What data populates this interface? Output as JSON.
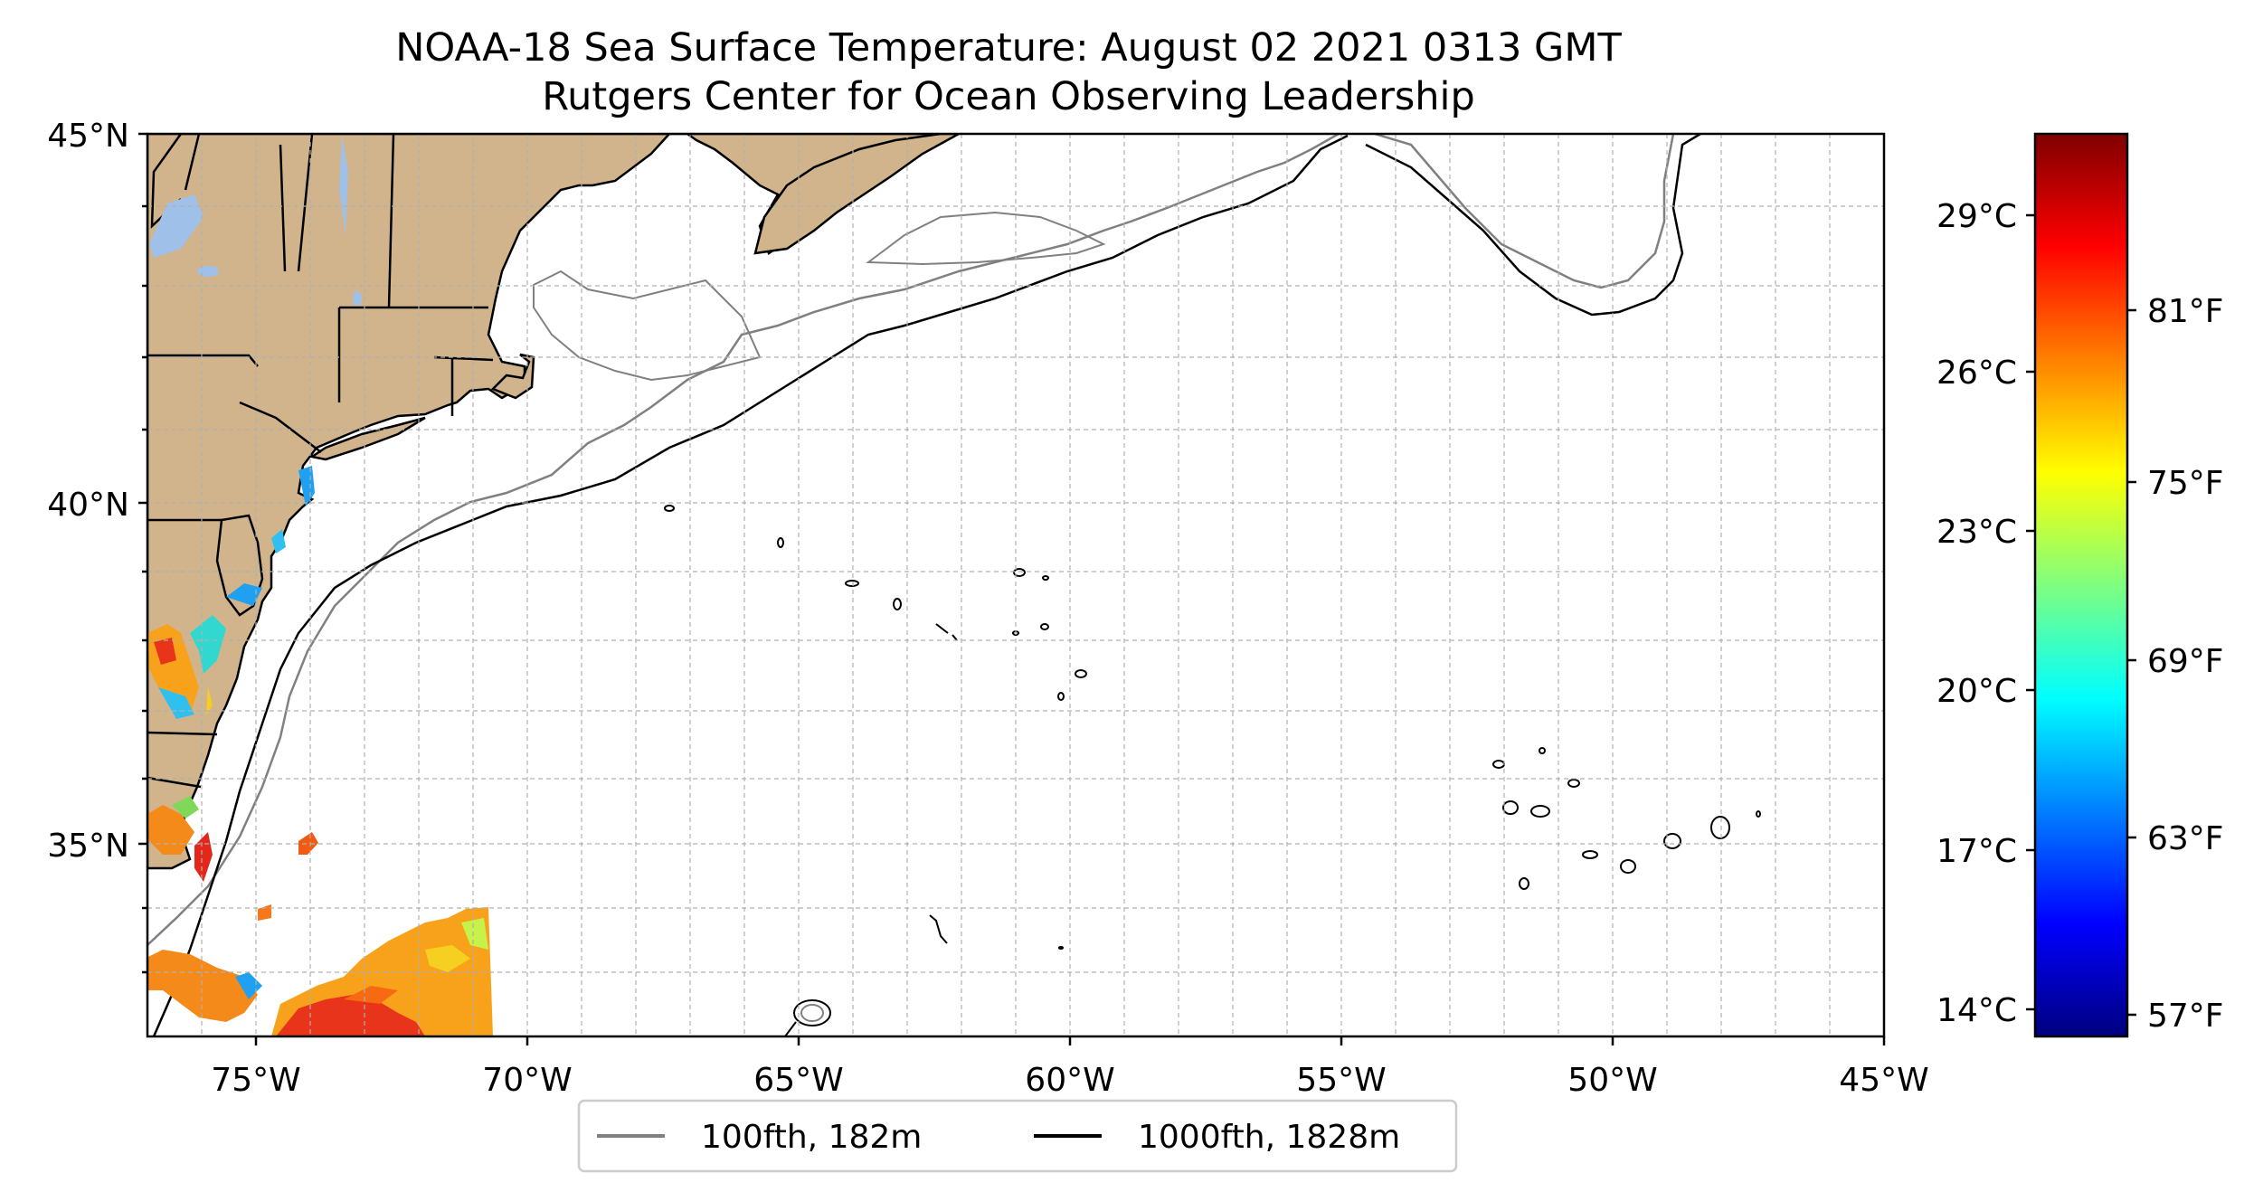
{
  "title": {
    "line1": "NOAA-18 Sea Surface Temperature: August 02 2021 0313 GMT",
    "line2": "Rutgers Center for Ocean Observing Leadership"
  },
  "map": {
    "lon_range": [
      -77,
      -45
    ],
    "lat_range": [
      32.2,
      45
    ],
    "grid": true,
    "land_color": "#d2b48c",
    "water_color": "#9fc0e8",
    "lon_ticks": [
      "75°W",
      "70°W",
      "65°W",
      "60°W",
      "55°W",
      "50°W",
      "45°W"
    ],
    "lat_ticks": [
      "45°N",
      "40°N",
      "35°N"
    ]
  },
  "colorbar": {
    "colormap": "jet",
    "celsius_ticks": [
      "29°C",
      "26°C",
      "23°C",
      "20°C",
      "17°C",
      "14°C"
    ],
    "fahrenheit_ticks": [
      "81°F",
      "75°F",
      "69°F",
      "63°F",
      "57°F"
    ]
  },
  "legend": {
    "items": [
      {
        "label": "100fth, 182m",
        "color": "#808080"
      },
      {
        "label": "1000fth, 1828m",
        "color": "#000000"
      }
    ]
  }
}
